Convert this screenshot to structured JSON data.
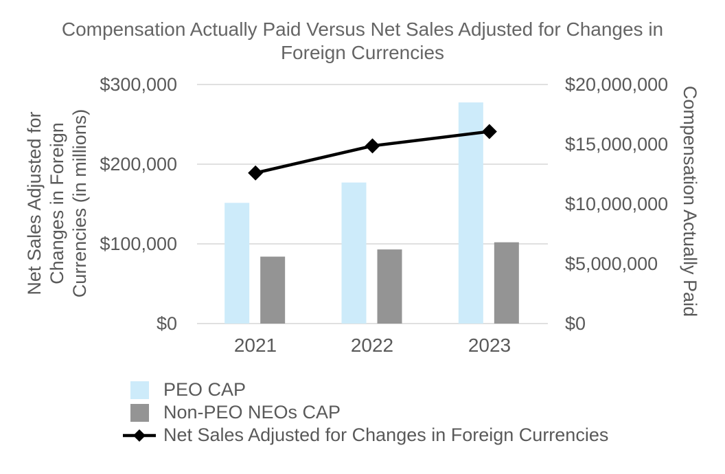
{
  "title_lines": [
    "Compensation Actually Paid Versus Net Sales Adjusted for Changes in",
    "Foreign Currencies"
  ],
  "colors": {
    "title_text": "#656565",
    "axis_text": "#595959",
    "gridline": "#E0E0E0",
    "peo_cap_bar": "#CDEBFA",
    "non_peo_cap_bar": "#949494",
    "net_sales_line": "#000000",
    "background": "#FFFFFF"
  },
  "chart_data": {
    "type": "combo",
    "title": "Compensation Actually Paid Versus Net Sales Adjusted for Changes in Foreign Currencies",
    "categories": [
      "2021",
      "2022",
      "2023"
    ],
    "series": [
      {
        "name": "PEO CAP",
        "chart_type": "bar",
        "axis": "right",
        "color": "#CDEBFA",
        "values": [
          10100000,
          11800000,
          18500000
        ]
      },
      {
        "name": "Non-PEO NEOs CAP",
        "chart_type": "bar",
        "axis": "right",
        "color": "#949494",
        "values": [
          5600000,
          6200000,
          6800000
        ]
      },
      {
        "name": "Net Sales Adjusted for Changes in Foreign Currencies",
        "chart_type": "line",
        "axis": "left",
        "color": "#000000",
        "marker": "diamond",
        "values": [
          189000,
          223000,
          241000
        ]
      }
    ],
    "y_left": {
      "title": "Net Sales Adjusted for\nChanges in Foreign\nCurrencies  (in millions)",
      "min": 0,
      "max": 300000,
      "tick_step": 100000,
      "tick_labels": [
        "$300,000",
        "$200,000",
        "$100,000",
        "$0"
      ]
    },
    "y_right": {
      "title": "Compensation Actually Paid",
      "min": 0,
      "max": 20000000,
      "tick_step": 5000000,
      "tick_labels": [
        "$20,000,000",
        "$15,000,000",
        "$10,000,000",
        "$5,000,000",
        "$0"
      ]
    },
    "xlabel": "",
    "grid": {
      "show": true,
      "horizontal_only": true
    },
    "legend_position": "bottom-left"
  }
}
